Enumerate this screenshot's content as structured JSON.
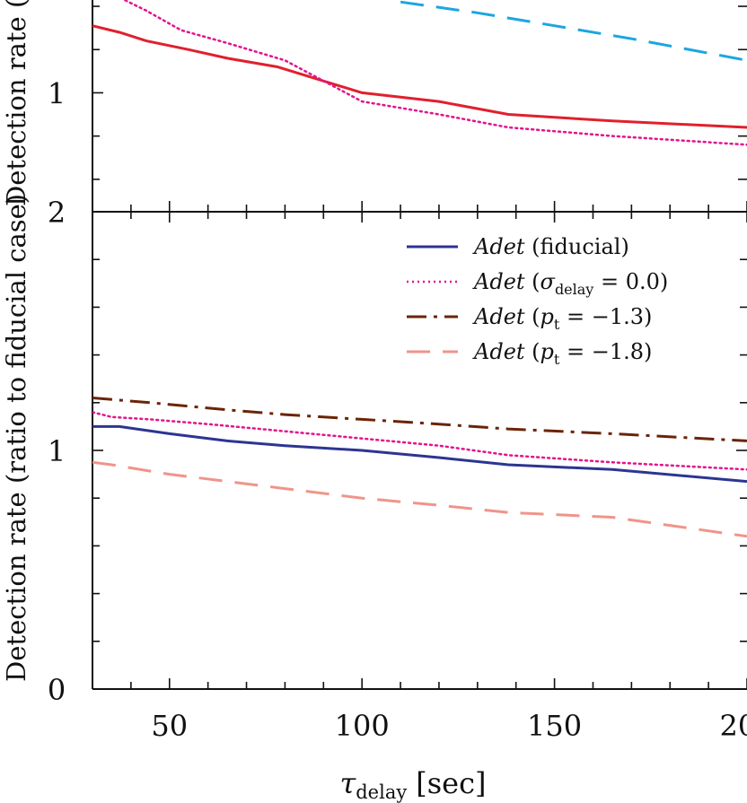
{
  "chart_data": [
    {
      "type": "line",
      "panel": "top",
      "ylabel": "Detection rate (",
      "xlim": [
        30,
        200
      ],
      "ylim": [
        0.45,
        1.45
      ],
      "ytick_labels": [
        {
          "value": 1,
          "label": "1"
        }
      ],
      "series": [
        {
          "name": "cyan-dashed",
          "color": "#1aa7e0",
          "dash": "dashed",
          "x": [
            110,
            130,
            150,
            170,
            200
          ],
          "y": [
            1.42,
            1.37,
            1.31,
            1.25,
            1.15
          ]
        },
        {
          "name": "red-solid",
          "color": "#e0202e",
          "dash": "solid",
          "x": [
            30,
            37,
            44,
            55,
            65,
            78,
            100,
            120,
            138,
            165,
            200
          ],
          "y": [
            1.31,
            1.28,
            1.24,
            1.2,
            1.16,
            1.12,
            1.0,
            0.96,
            0.9,
            0.87,
            0.84
          ]
        },
        {
          "name": "magenta-dotted",
          "color": "#e2148c",
          "dash": "dotted",
          "x": [
            36,
            44,
            53,
            65,
            80,
            100,
            120,
            138,
            165,
            200
          ],
          "y": [
            1.45,
            1.38,
            1.29,
            1.23,
            1.15,
            0.96,
            0.9,
            0.84,
            0.8,
            0.76
          ]
        }
      ]
    },
    {
      "type": "line",
      "panel": "bottom",
      "ylabel": "Detection rate (ratio to fiducial case)",
      "xlabel_symbol": "τ",
      "xlabel_sub": "delay",
      "xlabel_unit": "[sec]",
      "xlim": [
        30,
        200
      ],
      "ylim": [
        0,
        2
      ],
      "xticks": [
        50,
        100,
        150,
        200
      ],
      "xtick_labels": [
        "50",
        "100",
        "150",
        "200"
      ],
      "ytick_labels": [
        {
          "value": 0,
          "label": "0"
        },
        {
          "value": 1,
          "label": "1"
        },
        {
          "value": 2,
          "label": "2"
        }
      ],
      "legend_position": "top-right",
      "legend_prefix": "Adet",
      "series": [
        {
          "name": "(fiducial)",
          "color": "#2c3592",
          "dash": "solid",
          "x": [
            30,
            37,
            50,
            65,
            80,
            100,
            120,
            138,
            165,
            200
          ],
          "y": [
            1.1,
            1.1,
            1.07,
            1.04,
            1.02,
            1.0,
            0.97,
            0.94,
            0.92,
            0.87
          ]
        },
        {
          "name": "(σdelay = 0.0)",
          "color": "#e2148c",
          "dash": "dotted",
          "x": [
            30,
            35,
            45,
            60,
            80,
            100,
            120,
            138,
            165,
            200
          ],
          "y": [
            1.16,
            1.14,
            1.13,
            1.11,
            1.08,
            1.05,
            1.02,
            0.98,
            0.95,
            0.92
          ]
        },
        {
          "name": "(pt = −1.3)",
          "color": "#6b2406",
          "dash": "dashdot",
          "x": [
            30,
            45,
            65,
            80,
            100,
            120,
            138,
            165,
            200
          ],
          "y": [
            1.22,
            1.2,
            1.17,
            1.15,
            1.13,
            1.11,
            1.09,
            1.07,
            1.04
          ]
        },
        {
          "name": "(pt = −1.8)",
          "color": "#f0948a",
          "dash": "dashed",
          "x": [
            30,
            35,
            50,
            65,
            80,
            100,
            120,
            138,
            165,
            200
          ],
          "y": [
            0.95,
            0.94,
            0.9,
            0.87,
            0.84,
            0.8,
            0.77,
            0.74,
            0.72,
            0.64
          ]
        }
      ],
      "legend_math": [
        {
          "pre": "",
          "sym": "",
          "sub": "",
          "post": "(fiducial)"
        },
        {
          "pre": "(",
          "sym": "σ",
          "sub": "delay",
          "post": " = 0.0)"
        },
        {
          "pre": "(",
          "sym": "p",
          "sub": "t",
          "post": " = −1.3)"
        },
        {
          "pre": "(",
          "sym": "p",
          "sub": "t",
          "post": " = −1.8)"
        }
      ]
    }
  ]
}
